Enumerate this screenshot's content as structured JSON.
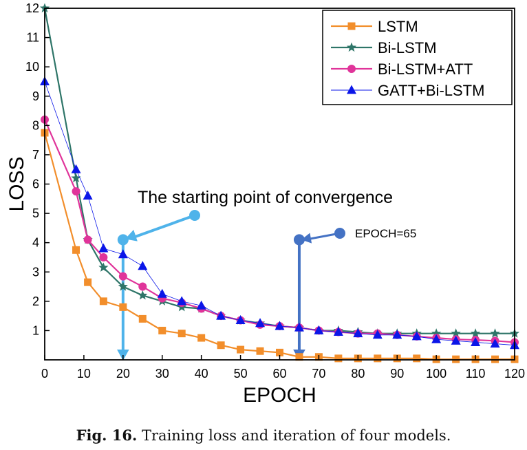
{
  "caption": {
    "label": "Fig. 16.",
    "text": "Training loss and iteration of four models."
  },
  "chart_data": {
    "type": "line",
    "xlabel": "EPOCH",
    "ylabel": "LOSS",
    "xlim": [
      0,
      120
    ],
    "ylim": [
      0,
      12
    ],
    "xticks": [
      0,
      10,
      20,
      30,
      40,
      50,
      60,
      70,
      80,
      90,
      100,
      110,
      120
    ],
    "yticks": [
      1,
      2,
      3,
      4,
      5,
      6,
      7,
      8,
      9,
      10,
      11,
      12
    ],
    "grid": false,
    "legend_position": "top-right",
    "series": [
      {
        "name": "LSTM",
        "color": "#f28e2b",
        "marker": "square",
        "x": [
          0,
          8,
          11,
          15,
          20,
          25,
          30,
          35,
          40,
          45,
          50,
          55,
          60,
          65,
          70,
          75,
          80,
          85,
          90,
          95,
          100,
          105,
          110,
          115,
          120
        ],
        "y": [
          7.75,
          3.75,
          2.65,
          2.0,
          1.8,
          1.4,
          1.0,
          0.9,
          0.75,
          0.5,
          0.35,
          0.3,
          0.25,
          0.1,
          0.1,
          0.05,
          0.05,
          0.05,
          0.05,
          0.05,
          0.02,
          0.02,
          0.02,
          0.02,
          0.02
        ]
      },
      {
        "name": "Bi-LSTM",
        "color": "#2e7568",
        "marker": "star",
        "x": [
          0,
          8,
          11,
          15,
          20,
          25,
          30,
          35,
          40,
          45,
          50,
          55,
          60,
          65,
          70,
          75,
          80,
          85,
          90,
          95,
          100,
          105,
          110,
          115,
          120
        ],
        "y": [
          12.0,
          6.2,
          4.1,
          3.15,
          2.5,
          2.2,
          2.0,
          1.8,
          1.75,
          1.5,
          1.35,
          1.25,
          1.15,
          1.1,
          1.0,
          1.0,
          0.95,
          0.9,
          0.9,
          0.9,
          0.9,
          0.9,
          0.9,
          0.9,
          0.9
        ]
      },
      {
        "name": "Bi-LSTM+ATT",
        "color": "#e0349a",
        "marker": "circle",
        "x": [
          0,
          8,
          11,
          15,
          20,
          25,
          30,
          35,
          40,
          45,
          50,
          55,
          60,
          65,
          70,
          75,
          80,
          85,
          90,
          95,
          100,
          105,
          110,
          115,
          120
        ],
        "y": [
          8.2,
          5.75,
          4.1,
          3.5,
          2.85,
          2.5,
          2.1,
          1.95,
          1.75,
          1.5,
          1.35,
          1.2,
          1.15,
          1.1,
          1.0,
          0.95,
          0.9,
          0.9,
          0.85,
          0.8,
          0.75,
          0.7,
          0.68,
          0.65,
          0.6
        ]
      },
      {
        "name": "GATT+Bi-LSTM",
        "color": "#0b16e8",
        "marker": "triangle",
        "x": [
          0,
          8,
          11,
          15,
          20,
          25,
          30,
          35,
          40,
          45,
          50,
          55,
          60,
          65,
          70,
          75,
          80,
          85,
          90,
          95,
          100,
          105,
          110,
          115,
          120
        ],
        "y": [
          9.5,
          6.5,
          5.6,
          3.8,
          3.6,
          3.2,
          2.25,
          2.0,
          1.85,
          1.5,
          1.35,
          1.25,
          1.15,
          1.1,
          1.0,
          0.95,
          0.9,
          0.85,
          0.85,
          0.8,
          0.7,
          0.65,
          0.6,
          0.55,
          0.5
        ]
      }
    ],
    "annotations": [
      {
        "text": "The starting point of convergence",
        "x": 20,
        "y": 4.1,
        "color": "#4fb3ea"
      },
      {
        "text": "EPOCH=65",
        "x": 65,
        "y": 4.1,
        "color": "#4472c4"
      }
    ]
  }
}
